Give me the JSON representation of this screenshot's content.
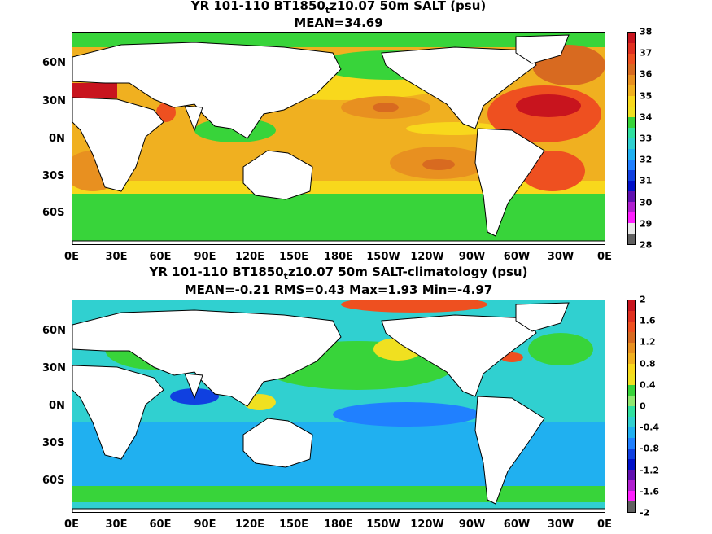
{
  "panel1": {
    "title_main": "YR 101-110 BT1850",
    "title_sub": "t",
    "title_rest": "z10.07 50m SALT (psu)",
    "stats": "MEAN=34.69",
    "colorbar": {
      "ticks": [
        "38",
        "37",
        "36",
        "35",
        "34",
        "33",
        "32",
        "31",
        "30",
        "29",
        "28"
      ],
      "colors": [
        "#c8141e",
        "#e03020",
        "#ee5020",
        "#d86a20",
        "#e89020",
        "#f0b020",
        "#f8d81c",
        "#f0e020",
        "#38d43a",
        "#30e0a0",
        "#30d0d0",
        "#20b0f0",
        "#2080ff",
        "#1040e0",
        "#0010c8",
        "#6010b0",
        "#b020d0",
        "#ff20ff",
        "#e8e8e8",
        "#606060"
      ]
    }
  },
  "panel2": {
    "title_main": "YR 101-110 BT1850",
    "title_sub": "t",
    "title_rest": "z10.07 50m SALT-climatology (psu)",
    "stats": "MEAN=-0.21   RMS=0.43   Max=1.93   Min=-4.97",
    "colorbar": {
      "ticks": [
        "2",
        "1.6",
        "1.2",
        "0.8",
        "0.4",
        "0",
        "-0.4",
        "-0.8",
        "-1.2",
        "-1.6",
        "-2"
      ],
      "colors": [
        "#c8141e",
        "#e03020",
        "#ee5020",
        "#d86a20",
        "#e89020",
        "#f0b020",
        "#f8d81c",
        "#f0e020",
        "#38d43a",
        "#90e870",
        "#30e0a0",
        "#30d0d0",
        "#20b0f0",
        "#2080ff",
        "#1040e0",
        "#0010c8",
        "#6010b0",
        "#b020d0",
        "#ff20ff",
        "#606060"
      ]
    }
  },
  "lat_labels": [
    "60N",
    "30N",
    "0N",
    "30S",
    "60S"
  ],
  "lon_labels": [
    "0E",
    "30E",
    "60E",
    "90E",
    "120E",
    "150E",
    "180E",
    "150W",
    "120W",
    "90W",
    "60W",
    "30W",
    "0E"
  ]
}
